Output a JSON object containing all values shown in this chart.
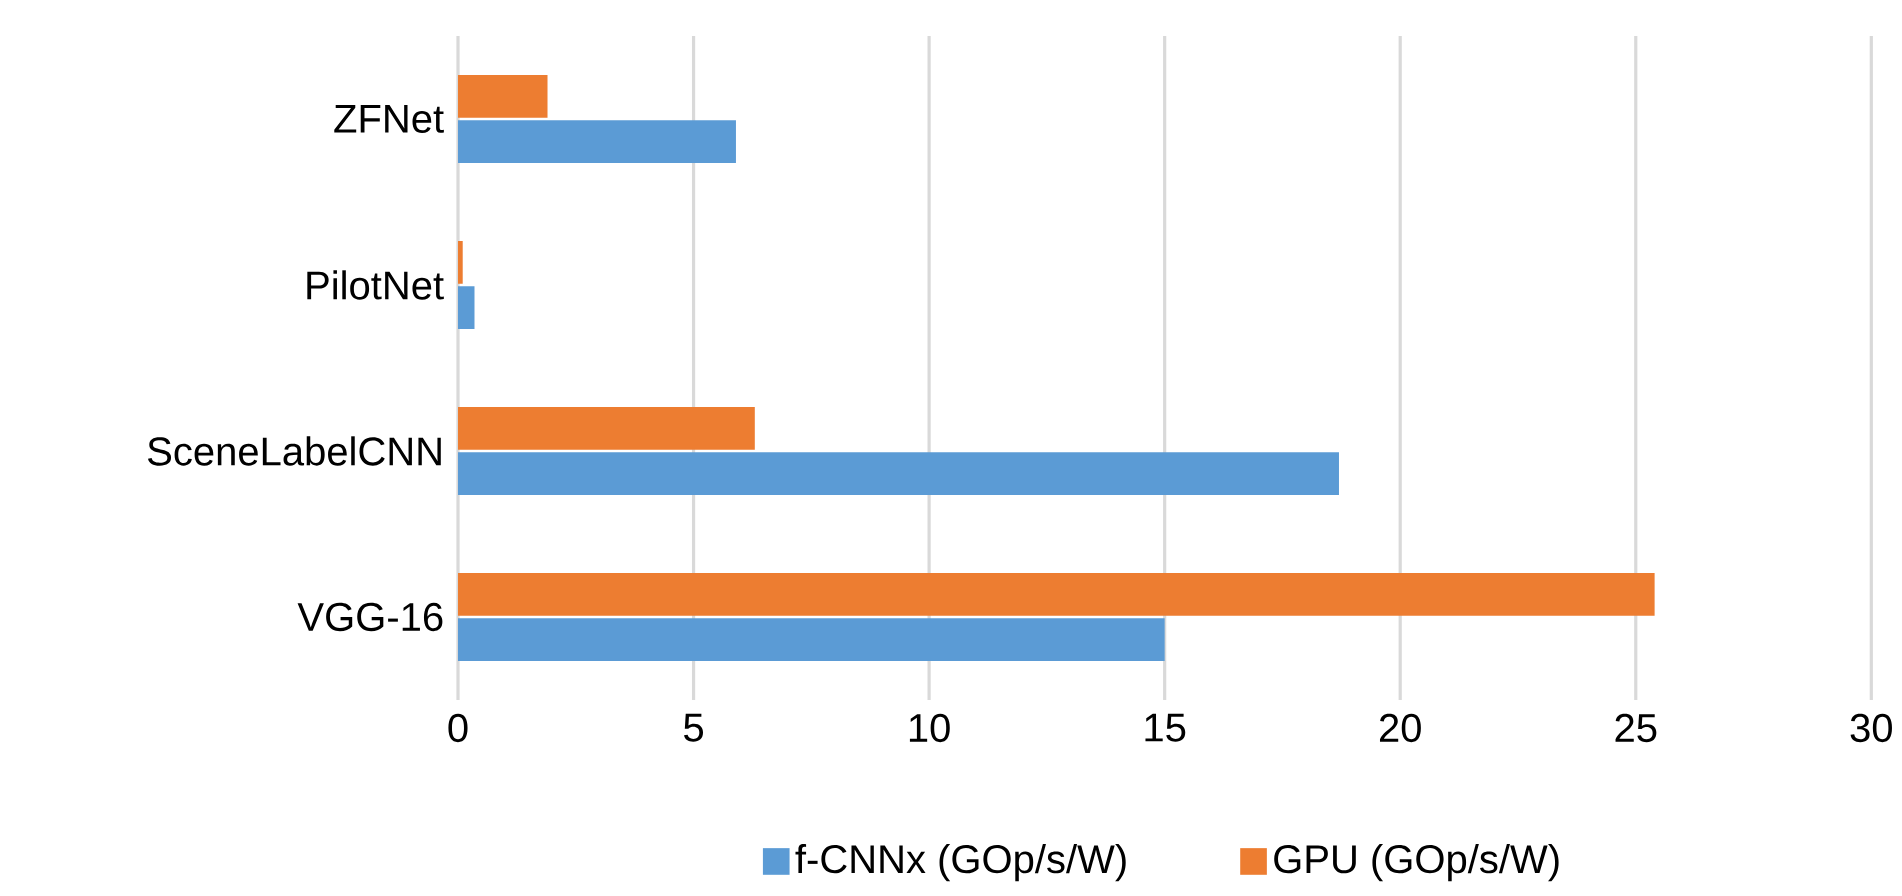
{
  "chart_data": {
    "type": "bar",
    "orientation": "horizontal",
    "categories": [
      "ZFNet",
      "PilotNet",
      "SceneLabelCNN",
      "VGG-16"
    ],
    "series": [
      {
        "name": "f-CNNx (GOp/s/W)",
        "color": "#5b9bd5",
        "values": [
          5.9,
          0.35,
          18.7,
          15.0
        ]
      },
      {
        "name": "GPU (GOp/s/W)",
        "color": "#ed7d31",
        "values": [
          1.9,
          0.1,
          6.3,
          25.4
        ]
      }
    ],
    "xlim": [
      0,
      30
    ],
    "xticks": [
      0,
      5,
      10,
      15,
      20,
      25,
      30
    ],
    "grid": "x",
    "legend": "bottom"
  }
}
